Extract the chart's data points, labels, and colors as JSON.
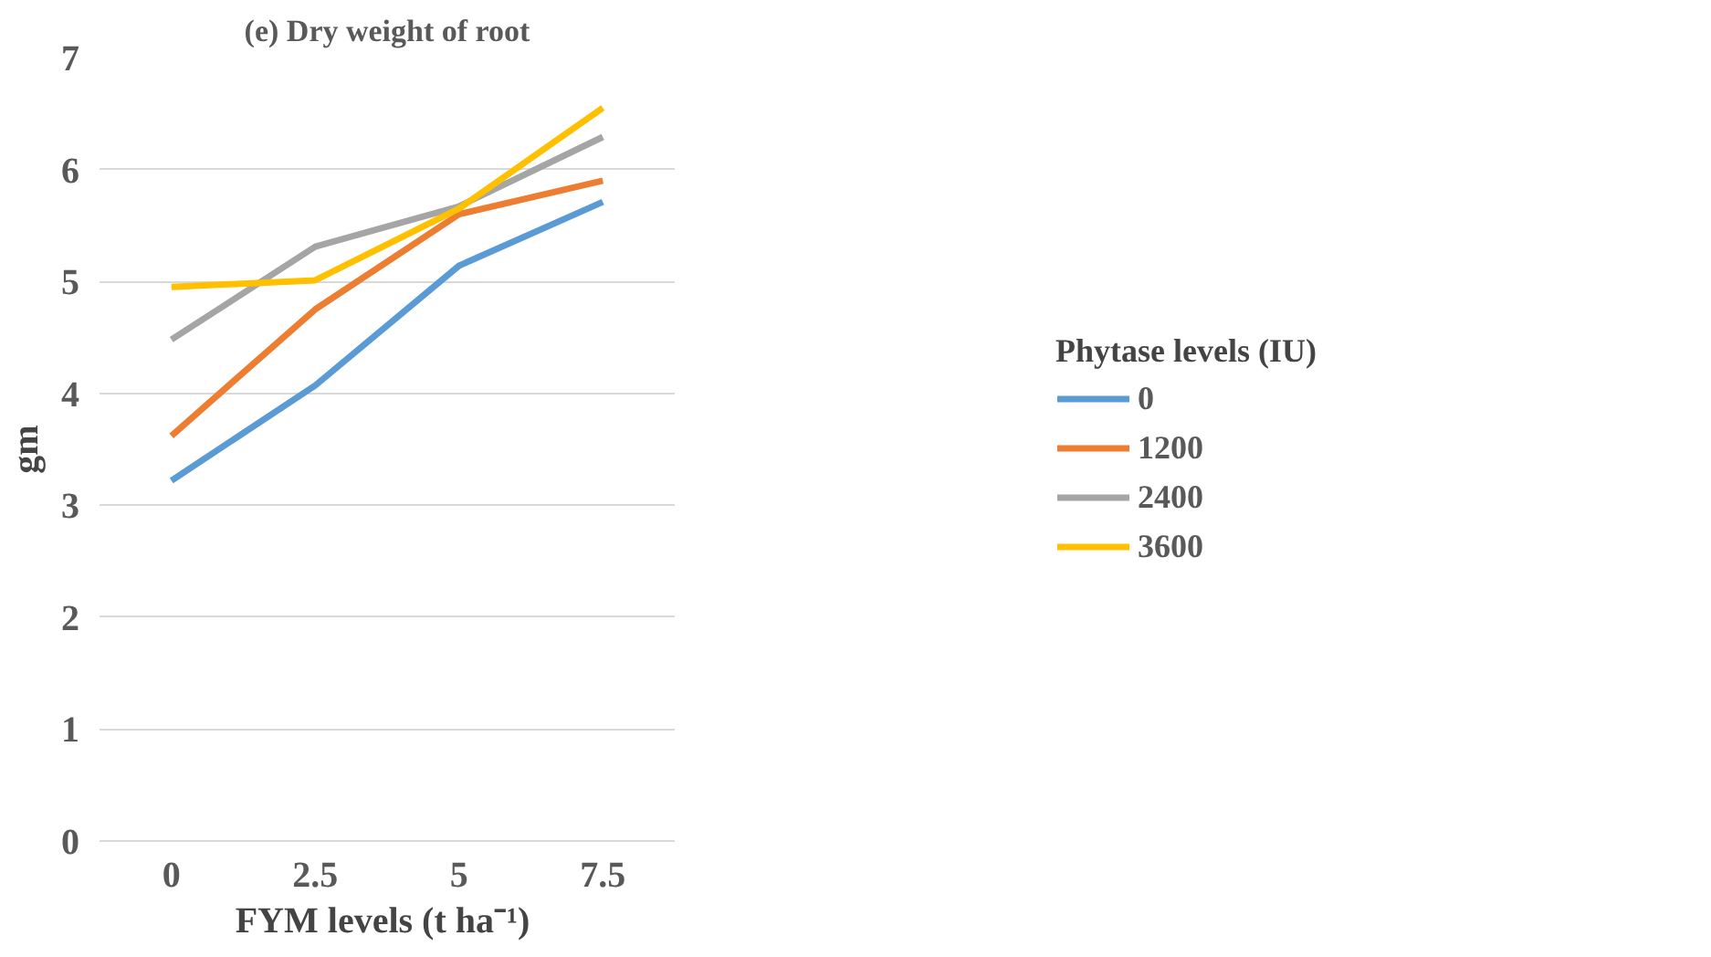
{
  "chart_data": {
    "type": "line",
    "title": "(e) Dry weight of root",
    "xlabel": "FYM levels  (t ha⁻¹)",
    "ylabel": "gm",
    "legend_title": "Phytase levels (IU)",
    "categories": [
      "0",
      "2.5",
      "5",
      "7.5"
    ],
    "series": [
      {
        "name": "0",
        "color": "#5b9bd5",
        "values": [
          3.22,
          4.07,
          5.14,
          5.71
        ]
      },
      {
        "name": "1200",
        "color": "#ed7d31",
        "values": [
          3.62,
          4.75,
          5.6,
          5.9
        ]
      },
      {
        "name": "2400",
        "color": "#a5a5a5",
        "values": [
          4.48,
          5.31,
          5.67,
          6.29
        ]
      },
      {
        "name": "3600",
        "color": "#ffc000",
        "values": [
          4.95,
          5.01,
          5.65,
          6.55
        ]
      }
    ],
    "ylim": [
      0,
      7
    ],
    "yticks": [
      0,
      1,
      2,
      3,
      4,
      5,
      6,
      7
    ],
    "grid": "y",
    "legend": "right",
    "marker": "none",
    "line_style": "solid"
  }
}
